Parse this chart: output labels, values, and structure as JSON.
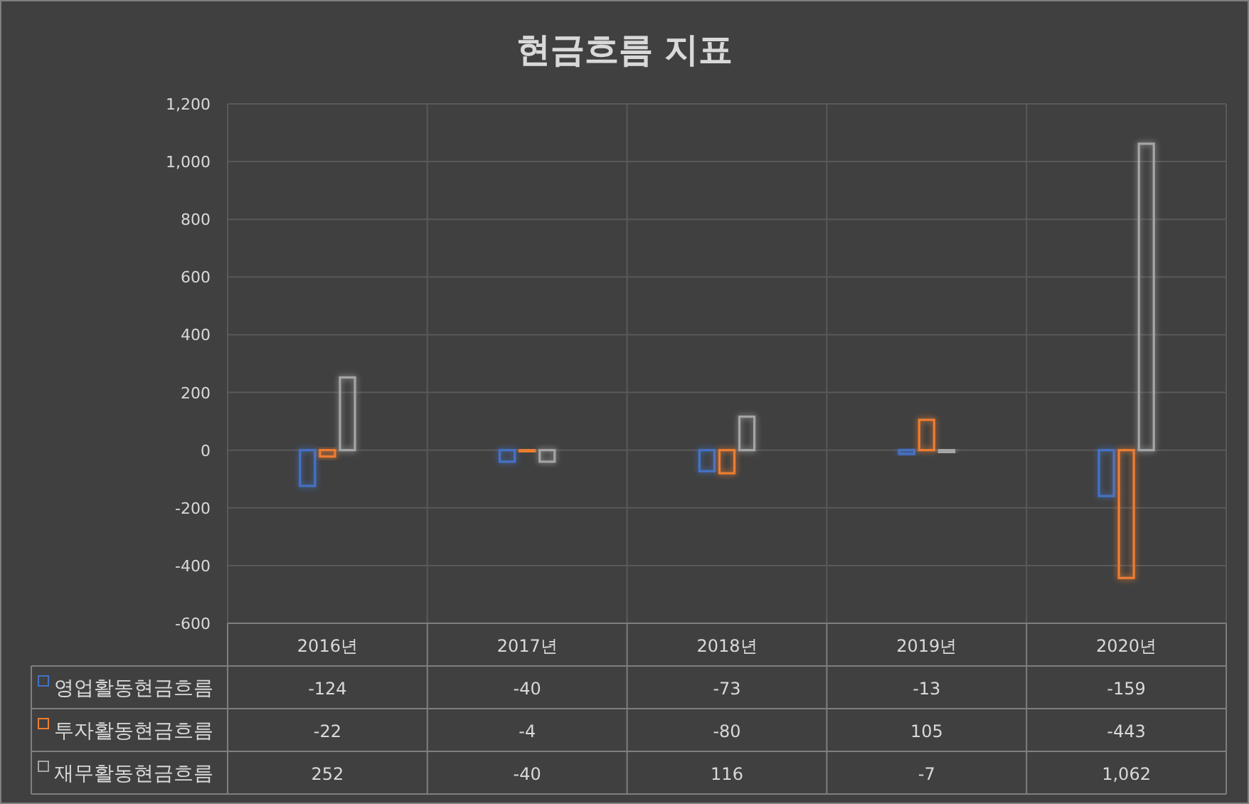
{
  "chart_data": {
    "type": "bar",
    "title": "현금흐름 지표",
    "categories": [
      "2016년",
      "2017년",
      "2018년",
      "2019년",
      "2020년"
    ],
    "series": [
      {
        "name": "영업활동현금흐름",
        "color": "#4472c4",
        "values": [
          -124,
          -40,
          -73,
          -13,
          -159
        ],
        "value_labels": [
          "-124",
          "-40",
          "-73",
          "-13",
          "-159"
        ]
      },
      {
        "name": "투자활동현금흐름",
        "color": "#ed7d31",
        "values": [
          -22,
          -4,
          -80,
          105,
          -443
        ],
        "value_labels": [
          "-22",
          "-4",
          "-80",
          "105",
          "-443"
        ]
      },
      {
        "name": "재무활동현금흐름",
        "color": "#a5a5a5",
        "values": [
          252,
          -40,
          116,
          -7,
          1062
        ],
        "value_labels": [
          "252",
          "-40",
          "116",
          "-7",
          "1,062"
        ]
      }
    ],
    "ylim": [
      -600,
      1200
    ],
    "yticks": [
      {
        "value": -600,
        "label": "-600"
      },
      {
        "value": -400,
        "label": "-400"
      },
      {
        "value": -200,
        "label": "-200"
      },
      {
        "value": 0,
        "label": "0"
      },
      {
        "value": 200,
        "label": "200"
      },
      {
        "value": 400,
        "label": "400"
      },
      {
        "value": 600,
        "label": "600"
      },
      {
        "value": 800,
        "label": "800"
      },
      {
        "value": 1000,
        "label": "1,000"
      },
      {
        "value": 1200,
        "label": "1,200"
      }
    ],
    "grid": true,
    "legend": "bottom"
  }
}
